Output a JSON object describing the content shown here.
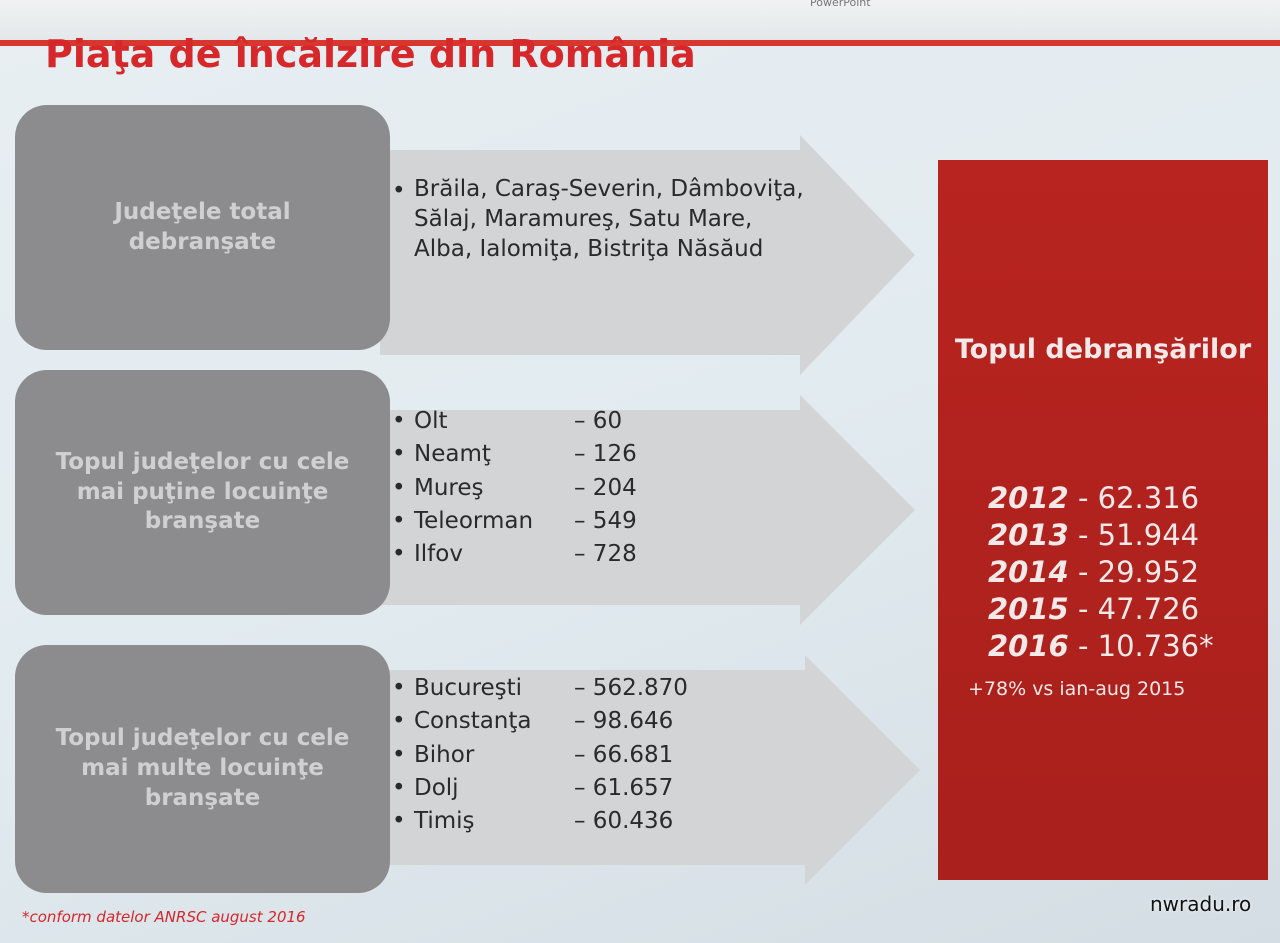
{
  "window": {
    "title": "PowerPoint"
  },
  "slide": {
    "title": "Piaţa de încălzire din România",
    "rows": [
      {
        "label": "Judeţele total debranşate",
        "text": "Brăila, Caraş-Severin, Dâmboviţa, Sălaj, Maramureş, Satu Mare, Alba, Ialomiţa, Bistriţa Năsăud"
      },
      {
        "label": "Topul judeţelor cu cele mai puţine locuinţe branşate",
        "items": [
          [
            "Olt",
            "– 60"
          ],
          [
            "Neamţ",
            "– 126"
          ],
          [
            "Mureş",
            "– 204"
          ],
          [
            "Teleorman",
            "– 549"
          ],
          [
            "Ilfov",
            "– 728"
          ]
        ]
      },
      {
        "label": "Topul judeţelor cu cele mai multe locuinţe branşate",
        "items": [
          [
            "Bucureşti",
            "– 562.870"
          ],
          [
            "Constanţa",
            "– 98.646"
          ],
          [
            "Bihor",
            "– 66.681"
          ],
          [
            "Dolj",
            "– 61.657"
          ],
          [
            "Timiş",
            "– 60.436"
          ]
        ]
      }
    ],
    "panel": {
      "title": "Topul debranşărilor",
      "years": [
        [
          "2012",
          "- 62.316"
        ],
        [
          "2013",
          "- 51.944"
        ],
        [
          "2014",
          "- 29.952"
        ],
        [
          "2015",
          "- 47.726"
        ],
        [
          "2016",
          "- 10.736*"
        ]
      ],
      "note": "+78% vs ian-aug 2015"
    },
    "footnote": "*conform datelor ANRSC august 2016"
  },
  "watermark": "nwradu.ro"
}
